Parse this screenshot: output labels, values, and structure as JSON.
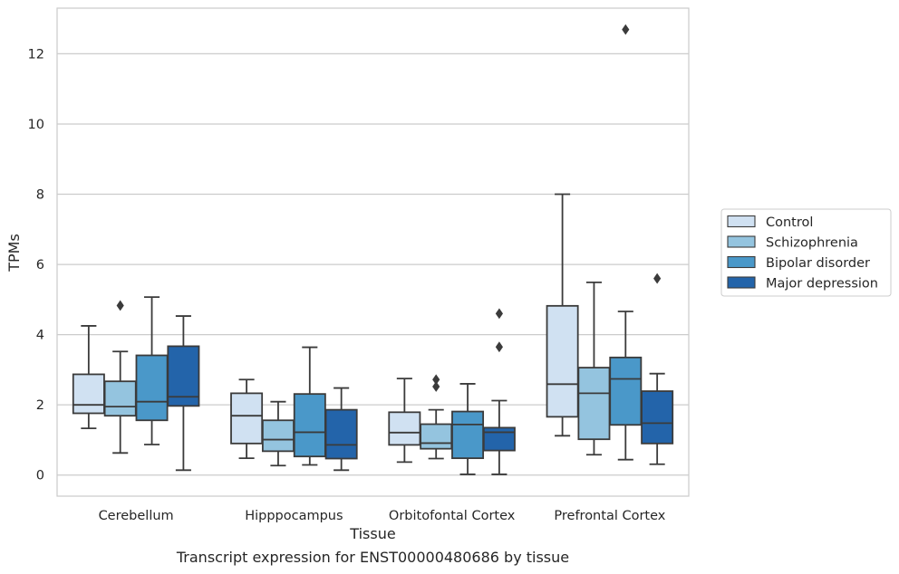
{
  "chart_data": {
    "type": "box",
    "caption": "Transcript expression for ENST00000480686 by tissue",
    "xlabel": "Tissue",
    "ylabel": "TPMs",
    "ylim": [
      -0.6,
      13.3
    ],
    "yticks": [
      0,
      2,
      4,
      6,
      8,
      10,
      12
    ],
    "grid": "horizontal",
    "legend_position": "right, outside",
    "categories": [
      "Cerebellum",
      "Hipppocampus",
      "Orbitofontal Cortex",
      "Prefrontal Cortex"
    ],
    "series": [
      {
        "name": "Control",
        "color": "#d0e1f2",
        "boxes": [
          {
            "whislo": 1.33,
            "q1": 1.76,
            "med": 2.0,
            "q3": 2.87,
            "whishi": 4.25,
            "fliers": []
          },
          {
            "whislo": 0.48,
            "q1": 0.9,
            "med": 1.69,
            "q3": 2.33,
            "whishi": 2.72,
            "fliers": []
          },
          {
            "whislo": 0.37,
            "q1": 0.86,
            "med": 1.21,
            "q3": 1.79,
            "whishi": 2.75,
            "fliers": []
          },
          {
            "whislo": 1.12,
            "q1": 1.66,
            "med": 2.59,
            "q3": 4.82,
            "whishi": 8.0,
            "fliers": []
          }
        ]
      },
      {
        "name": "Schizophrenia",
        "color": "#94c4df",
        "boxes": [
          {
            "whislo": 0.63,
            "q1": 1.69,
            "med": 1.95,
            "q3": 2.67,
            "whishi": 3.52,
            "fliers": [
              4.83
            ]
          },
          {
            "whislo": 0.27,
            "q1": 0.68,
            "med": 1.01,
            "q3": 1.56,
            "whishi": 2.09,
            "fliers": []
          },
          {
            "whislo": 0.47,
            "q1": 0.75,
            "med": 0.91,
            "q3": 1.45,
            "whishi": 1.86,
            "fliers": [
              2.52,
              2.72
            ]
          },
          {
            "whislo": 0.58,
            "q1": 1.02,
            "med": 2.33,
            "q3": 3.06,
            "whishi": 5.49,
            "fliers": []
          }
        ]
      },
      {
        "name": "Bipolar disorder",
        "color": "#4a98c9",
        "boxes": [
          {
            "whislo": 0.87,
            "q1": 1.56,
            "med": 2.09,
            "q3": 3.41,
            "whishi": 5.07,
            "fliers": []
          },
          {
            "whislo": 0.29,
            "q1": 0.53,
            "med": 1.22,
            "q3": 2.31,
            "whishi": 3.64,
            "fliers": []
          },
          {
            "whislo": 0.02,
            "q1": 0.48,
            "med": 1.44,
            "q3": 1.81,
            "whishi": 2.6,
            "fliers": []
          },
          {
            "whislo": 0.44,
            "q1": 1.43,
            "med": 2.74,
            "q3": 3.35,
            "whishi": 4.66,
            "fliers": [
              12.69
            ]
          }
        ]
      },
      {
        "name": "Major depression",
        "color": "#2364aa",
        "boxes": [
          {
            "whislo": 0.14,
            "q1": 1.97,
            "med": 2.23,
            "q3": 3.67,
            "whishi": 4.53,
            "fliers": []
          },
          {
            "whislo": 0.14,
            "q1": 0.47,
            "med": 0.86,
            "q3": 1.86,
            "whishi": 2.48,
            "fliers": []
          },
          {
            "whislo": 0.02,
            "q1": 0.7,
            "med": 1.22,
            "q3": 1.35,
            "whishi": 2.12,
            "fliers": [
              3.65,
              4.6
            ]
          },
          {
            "whislo": 0.31,
            "q1": 0.9,
            "med": 1.48,
            "q3": 2.39,
            "whishi": 2.89,
            "fliers": [
              5.6
            ]
          }
        ]
      }
    ]
  }
}
